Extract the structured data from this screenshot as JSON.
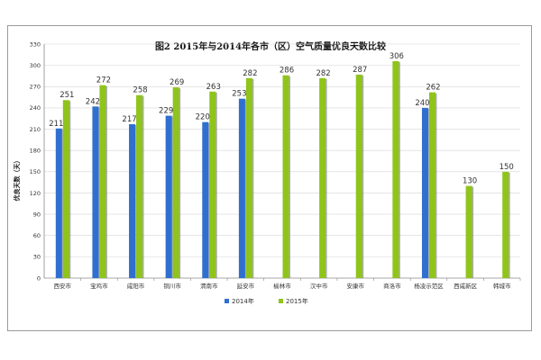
{
  "chart_data": {
    "type": "bar",
    "title": "图2  2015年与2014年各市（区）空气质量优良天数比较",
    "xlabel": "",
    "ylabel": "优良天数（天）",
    "ylim": [
      0,
      330
    ],
    "yticks": [
      0,
      30,
      60,
      90,
      120,
      150,
      180,
      210,
      240,
      270,
      300,
      330
    ],
    "grid": true,
    "legend_position": "bottom",
    "categories": [
      "西安市",
      "宝鸡市",
      "咸阳市",
      "铜川市",
      "渭南市",
      "延安市",
      "榆林市",
      "汉中市",
      "安康市",
      "商洛市",
      "杨凌示范区",
      "西咸新区",
      "韩城市"
    ],
    "series": [
      {
        "name": "2014年",
        "color": "#2f6fd0",
        "values": [
          211,
          242,
          217,
          229,
          220,
          253,
          null,
          null,
          null,
          null,
          240,
          null,
          null
        ]
      },
      {
        "name": "2015年",
        "color": "#8fc41a",
        "values": [
          251,
          272,
          258,
          269,
          263,
          282,
          286,
          282,
          287,
          306,
          262,
          130,
          150
        ]
      }
    ]
  }
}
